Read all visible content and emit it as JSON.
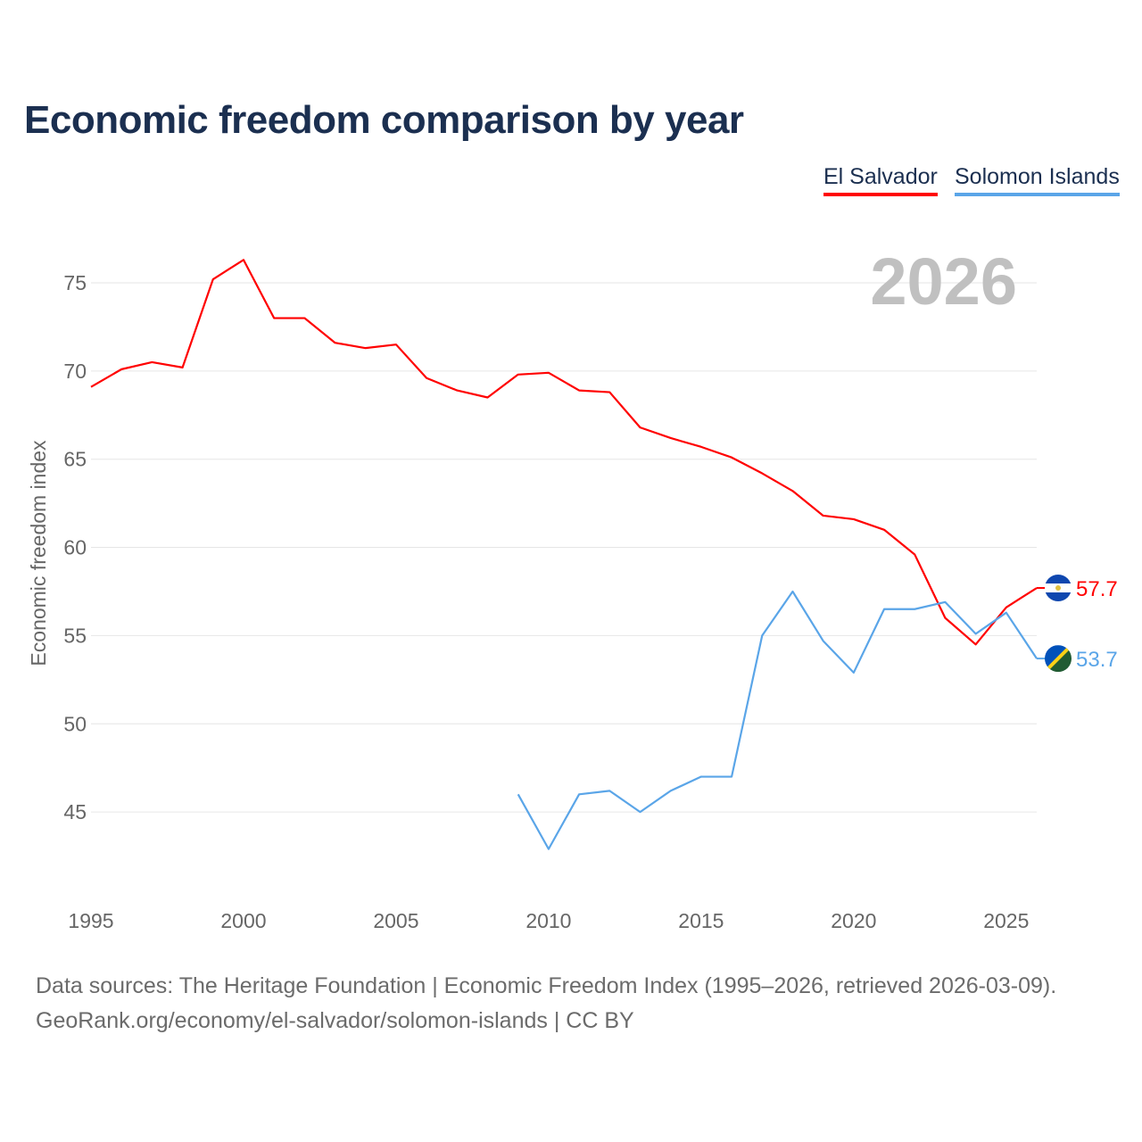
{
  "title": "Economic freedom comparison by year",
  "footer": {
    "line1": "Data sources: The Heritage Foundation | Economic Freedom Index (1995–2026, retrieved 2026-03-09).",
    "line2": "GeoRank.org/economy/el-salvador/solomon-islands | CC BY"
  },
  "chart_data": {
    "type": "line",
    "title": "Economic freedom comparison by year",
    "xlabel": "",
    "ylabel": "Economic freedom index",
    "year_label": "2026",
    "xlim": [
      1995,
      2026
    ],
    "ylim": [
      40.4,
      77
    ],
    "x_ticks": [
      1995,
      2000,
      2005,
      2010,
      2015,
      2020,
      2025
    ],
    "y_ticks": [
      45,
      50,
      55,
      60,
      65,
      70,
      75
    ],
    "grid": true,
    "legend_position": "top-right",
    "series": [
      {
        "name": "El Salvador",
        "color": "#ff0000",
        "end_label": "57.7",
        "flag": "el-salvador-flag",
        "x": [
          1995,
          1996,
          1997,
          1998,
          1999,
          2000,
          2001,
          2002,
          2003,
          2004,
          2005,
          2006,
          2007,
          2008,
          2009,
          2010,
          2011,
          2012,
          2013,
          2014,
          2015,
          2016,
          2017,
          2018,
          2019,
          2020,
          2021,
          2022,
          2023,
          2024,
          2025,
          2026
        ],
        "values": [
          69.1,
          70.1,
          70.5,
          70.2,
          75.2,
          76.3,
          73.0,
          73.0,
          71.6,
          71.3,
          71.5,
          69.6,
          68.9,
          68.5,
          69.8,
          69.9,
          68.9,
          68.8,
          66.8,
          66.2,
          65.7,
          65.1,
          64.2,
          63.2,
          61.8,
          61.6,
          61.0,
          59.6,
          56.0,
          54.5,
          56.6,
          57.7
        ]
      },
      {
        "name": "Solomon Islands",
        "color": "#5aa5e8",
        "end_label": "53.7",
        "flag": "solomon-islands-flag",
        "x": [
          2009,
          2010,
          2011,
          2012,
          2013,
          2014,
          2015,
          2016,
          2017,
          2018,
          2019,
          2020,
          2021,
          2022,
          2023,
          2024,
          2025,
          2026
        ],
        "values": [
          46.0,
          42.9,
          46.0,
          46.2,
          45.0,
          46.2,
          47.0,
          47.0,
          55.0,
          57.5,
          54.7,
          52.9,
          56.5,
          56.5,
          56.9,
          55.1,
          56.3,
          53.7
        ]
      }
    ]
  }
}
